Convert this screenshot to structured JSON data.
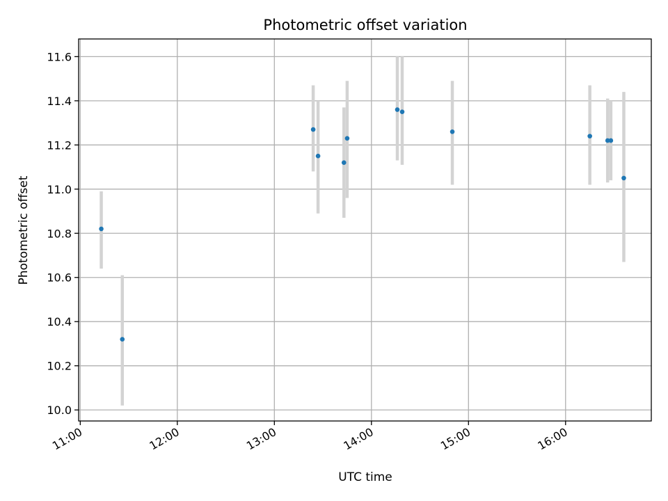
{
  "chart_data": {
    "type": "scatter",
    "title": "Photometric offset variation",
    "xlabel": "UTC time",
    "ylabel": "Photometric offset",
    "x_unit": "UTC time (HH:MM)",
    "xlim": [
      "10:59",
      "16:53"
    ],
    "ylim": [
      9.95,
      11.68
    ],
    "x_ticks": [
      "11:00",
      "12:00",
      "13:00",
      "14:00",
      "15:00",
      "16:00"
    ],
    "y_ticks": [
      10.0,
      10.2,
      10.4,
      10.6,
      10.8,
      11.0,
      11.2,
      11.4,
      11.6
    ],
    "y_tick_labels": [
      "10.0",
      "10.2",
      "10.4",
      "10.6",
      "10.8",
      "11.0",
      "11.2",
      "11.4",
      "11.6"
    ],
    "grid": true,
    "marker_color": "#1f77b4",
    "errorbar_color": "#d3d3d3",
    "points": [
      {
        "x": "11:13",
        "y": 10.82,
        "ylow": 10.64,
        "yhigh": 10.99
      },
      {
        "x": "11:26",
        "y": 10.32,
        "ylow": 10.02,
        "yhigh": 10.61
      },
      {
        "x": "13:24",
        "y": 11.27,
        "ylow": 11.08,
        "yhigh": 11.47
      },
      {
        "x": "13:27",
        "y": 11.15,
        "ylow": 10.89,
        "yhigh": 11.4
      },
      {
        "x": "13:43",
        "y": 11.12,
        "ylow": 10.87,
        "yhigh": 11.37
      },
      {
        "x": "13:45",
        "y": 11.23,
        "ylow": 10.96,
        "yhigh": 11.49
      },
      {
        "x": "14:16",
        "y": 11.36,
        "ylow": 11.13,
        "yhigh": 11.6
      },
      {
        "x": "14:19",
        "y": 11.35,
        "ylow": 11.11,
        "yhigh": 11.6
      },
      {
        "x": "14:50",
        "y": 11.26,
        "ylow": 11.02,
        "yhigh": 11.49
      },
      {
        "x": "16:15",
        "y": 11.24,
        "ylow": 11.02,
        "yhigh": 11.47
      },
      {
        "x": "16:26",
        "y": 11.22,
        "ylow": 11.03,
        "yhigh": 11.41
      },
      {
        "x": "16:28",
        "y": 11.22,
        "ylow": 11.04,
        "yhigh": 11.4
      },
      {
        "x": "16:36",
        "y": 11.05,
        "ylow": 10.67,
        "yhigh": 11.44
      }
    ]
  }
}
